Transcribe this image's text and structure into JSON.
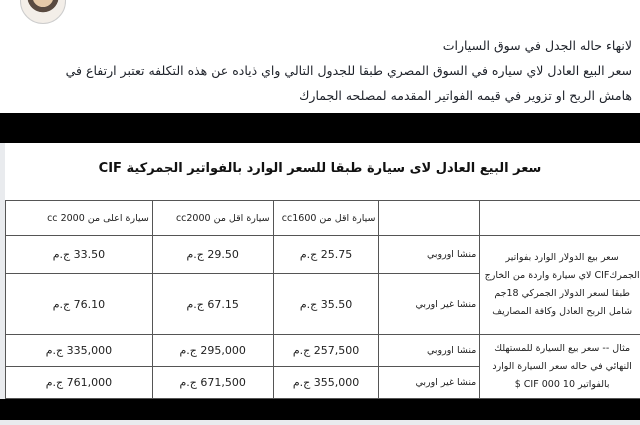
{
  "post": {
    "lines": [
      "لانهاء حاله الجدل في سوق السيارات",
      "سعر البيع العادل لاي سياره في السوق المصري طبقا للجدول التالي واي ذياده عن هذه التكلفه تعتبر ارتفاع في",
      "هامش الربح او تزوير في قيمه الفواتير المقدمه لمصلحه الجمارك"
    ]
  },
  "image": {
    "title": "سعر البيع العادل لاى سيارة طبقا للسعر الوارد بالفواتير الجمركية CIF",
    "headers": [
      "",
      "",
      "سيارة اقل من cc1600",
      "سيارة اقل من cc2000",
      "سيارة اعلى من 2000 cc"
    ],
    "groups": [
      {
        "label": "سعر بيع الدولار الوارد بفواتير الجمركCIF لاي سيارة واردة من الخارج طبقا لسعر الدولار الجمركي 18جم شامل الربح العادل وكافة المصاريف",
        "rows": [
          {
            "origin": "منشا اوروبي",
            "values": [
              "25.75 ج.م",
              "29.50 ج.م",
              "33.50 ج.م"
            ]
          },
          {
            "origin": "منشا غير اوربي",
            "values": [
              "35.50 ج.م",
              "67.15 ج.م",
              "76.10 ج.م"
            ]
          }
        ]
      },
      {
        "label": "مثال -- سعر بيع السيارة للمستهلك النهائي في حاله سعر السيارة الوارد بالفواتير 10 000 CIF $",
        "rows": [
          {
            "origin": "منشا اوروبي",
            "values": [
              "257,500 ج.م",
              "295,000 ج.م",
              "335,000 ج.م"
            ]
          },
          {
            "origin": "منشا غير اوربي",
            "values": [
              "355,000 ج.م",
              "671,500 ج.م",
              "761,000 ج.م"
            ]
          }
        ]
      }
    ]
  }
}
